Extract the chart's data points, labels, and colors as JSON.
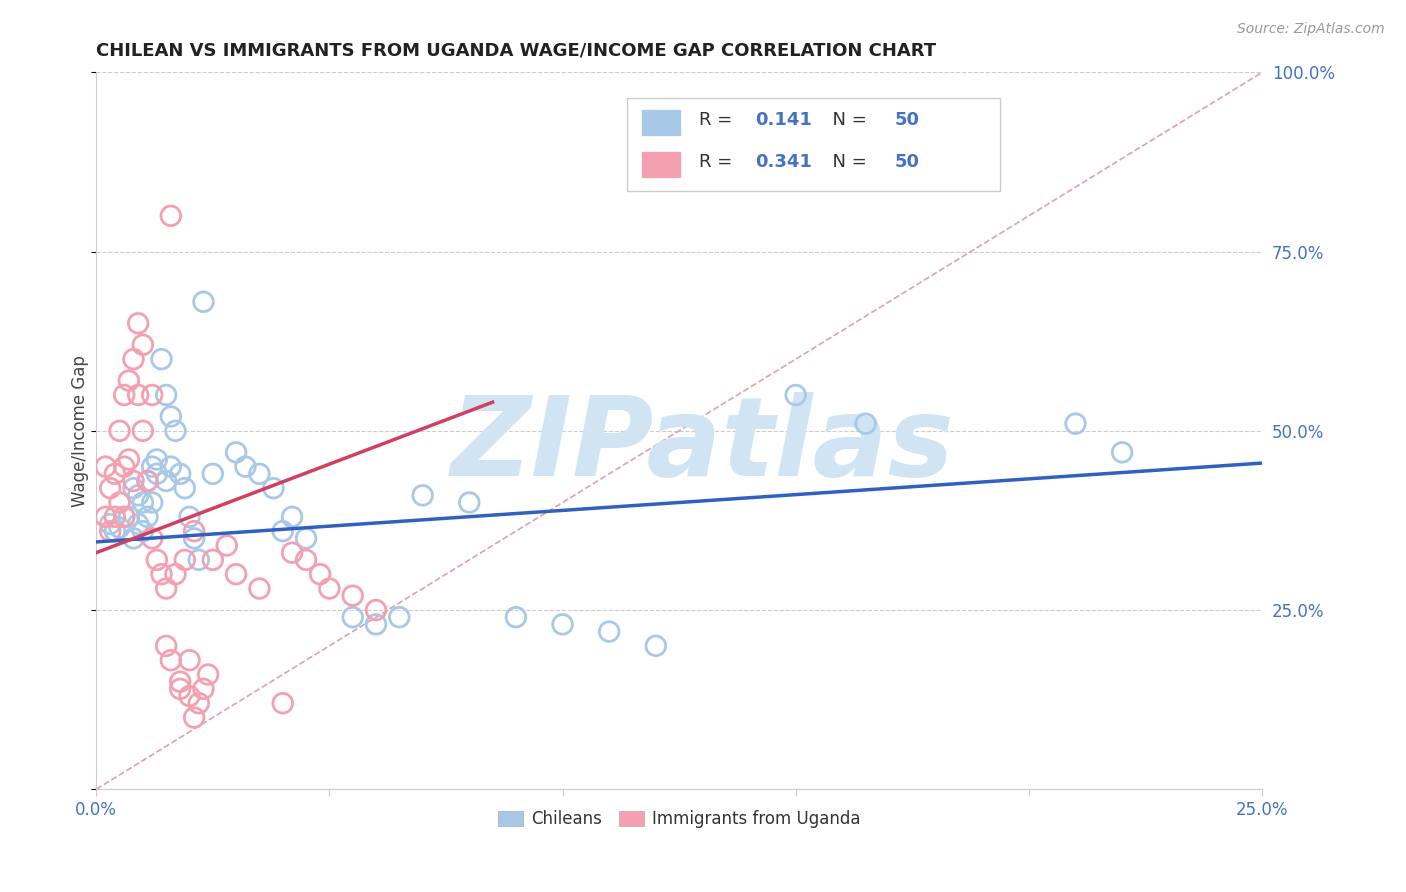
{
  "title": "CHILEAN VS IMMIGRANTS FROM UGANDA WAGE/INCOME GAP CORRELATION CHART",
  "source": "Source: ZipAtlas.com",
  "ylabel": "Wage/Income Gap",
  "xlim": [
    0.0,
    0.25
  ],
  "ylim": [
    0.0,
    1.0
  ],
  "xtick_positions": [
    0.0,
    0.05,
    0.1,
    0.15,
    0.2,
    0.25
  ],
  "xtick_labels": [
    "0.0%",
    "",
    "",
    "",
    "",
    "25.0%"
  ],
  "ytick_positions": [
    0.0,
    0.25,
    0.5,
    0.75,
    1.0
  ],
  "ytick_labels": [
    "",
    "25.0%",
    "50.0%",
    "75.0%",
    "100.0%"
  ],
  "chilean_scatter": [
    [
      0.003,
      0.37
    ],
    [
      0.004,
      0.36
    ],
    [
      0.005,
      0.365
    ],
    [
      0.006,
      0.38
    ],
    [
      0.007,
      0.38
    ],
    [
      0.008,
      0.35
    ],
    [
      0.008,
      0.42
    ],
    [
      0.009,
      0.41
    ],
    [
      0.009,
      0.37
    ],
    [
      0.01,
      0.4
    ],
    [
      0.01,
      0.36
    ],
    [
      0.011,
      0.43
    ],
    [
      0.011,
      0.38
    ],
    [
      0.012,
      0.45
    ],
    [
      0.012,
      0.4
    ],
    [
      0.013,
      0.46
    ],
    [
      0.013,
      0.44
    ],
    [
      0.014,
      0.6
    ],
    [
      0.015,
      0.55
    ],
    [
      0.015,
      0.43
    ],
    [
      0.016,
      0.52
    ],
    [
      0.016,
      0.45
    ],
    [
      0.017,
      0.5
    ],
    [
      0.018,
      0.44
    ],
    [
      0.019,
      0.42
    ],
    [
      0.02,
      0.38
    ],
    [
      0.021,
      0.35
    ],
    [
      0.022,
      0.32
    ],
    [
      0.023,
      0.68
    ],
    [
      0.025,
      0.44
    ],
    [
      0.03,
      0.47
    ],
    [
      0.032,
      0.45
    ],
    [
      0.035,
      0.44
    ],
    [
      0.038,
      0.42
    ],
    [
      0.04,
      0.36
    ],
    [
      0.042,
      0.38
    ],
    [
      0.045,
      0.35
    ],
    [
      0.055,
      0.24
    ],
    [
      0.06,
      0.23
    ],
    [
      0.065,
      0.24
    ],
    [
      0.07,
      0.41
    ],
    [
      0.08,
      0.4
    ],
    [
      0.09,
      0.24
    ],
    [
      0.1,
      0.23
    ],
    [
      0.11,
      0.22
    ],
    [
      0.12,
      0.2
    ],
    [
      0.15,
      0.55
    ],
    [
      0.165,
      0.51
    ],
    [
      0.21,
      0.51
    ],
    [
      0.22,
      0.47
    ]
  ],
  "uganda_scatter": [
    [
      0.002,
      0.45
    ],
    [
      0.002,
      0.38
    ],
    [
      0.003,
      0.42
    ],
    [
      0.003,
      0.36
    ],
    [
      0.004,
      0.44
    ],
    [
      0.004,
      0.38
    ],
    [
      0.005,
      0.5
    ],
    [
      0.005,
      0.4
    ],
    [
      0.006,
      0.55
    ],
    [
      0.006,
      0.45
    ],
    [
      0.006,
      0.38
    ],
    [
      0.007,
      0.57
    ],
    [
      0.007,
      0.46
    ],
    [
      0.008,
      0.6
    ],
    [
      0.008,
      0.43
    ],
    [
      0.009,
      0.65
    ],
    [
      0.009,
      0.55
    ],
    [
      0.01,
      0.5
    ],
    [
      0.01,
      0.62
    ],
    [
      0.011,
      0.43
    ],
    [
      0.012,
      0.55
    ],
    [
      0.012,
      0.35
    ],
    [
      0.013,
      0.32
    ],
    [
      0.014,
      0.3
    ],
    [
      0.015,
      0.28
    ],
    [
      0.015,
      0.2
    ],
    [
      0.016,
      0.18
    ],
    [
      0.016,
      0.8
    ],
    [
      0.017,
      0.3
    ],
    [
      0.018,
      0.15
    ],
    [
      0.018,
      0.14
    ],
    [
      0.019,
      0.32
    ],
    [
      0.02,
      0.18
    ],
    [
      0.02,
      0.13
    ],
    [
      0.021,
      0.36
    ],
    [
      0.021,
      0.1
    ],
    [
      0.022,
      0.12
    ],
    [
      0.023,
      0.14
    ],
    [
      0.024,
      0.16
    ],
    [
      0.025,
      0.32
    ],
    [
      0.028,
      0.34
    ],
    [
      0.03,
      0.3
    ],
    [
      0.035,
      0.28
    ],
    [
      0.04,
      0.12
    ],
    [
      0.042,
      0.33
    ],
    [
      0.045,
      0.32
    ],
    [
      0.048,
      0.3
    ],
    [
      0.05,
      0.28
    ],
    [
      0.055,
      0.27
    ],
    [
      0.06,
      0.25
    ]
  ],
  "blue_line_x": [
    0.0,
    0.25
  ],
  "blue_line_y": [
    0.345,
    0.455
  ],
  "pink_line_x": [
    0.0,
    0.085
  ],
  "pink_line_y": [
    0.33,
    0.54
  ],
  "diag_line_x": [
    0.0,
    0.25
  ],
  "diag_line_y": [
    0.0,
    1.0
  ],
  "scatter_color_blue": "#a8c8e8",
  "scatter_color_pink": "#f4a0b0",
  "line_color_blue": "#3060c0",
  "line_color_pink": "#d04060",
  "diag_line_color": "#e0a0b0",
  "watermark_color": "#d0e4f4",
  "legend_color_blue": "#a8c8e8",
  "legend_color_pink": "#f4a0b0",
  "legend_R_color": "#333333",
  "legend_N_color": "#4472c4",
  "bottom_legend_blue": "Chileans",
  "bottom_legend_pink": "Immigrants from Uganda"
}
